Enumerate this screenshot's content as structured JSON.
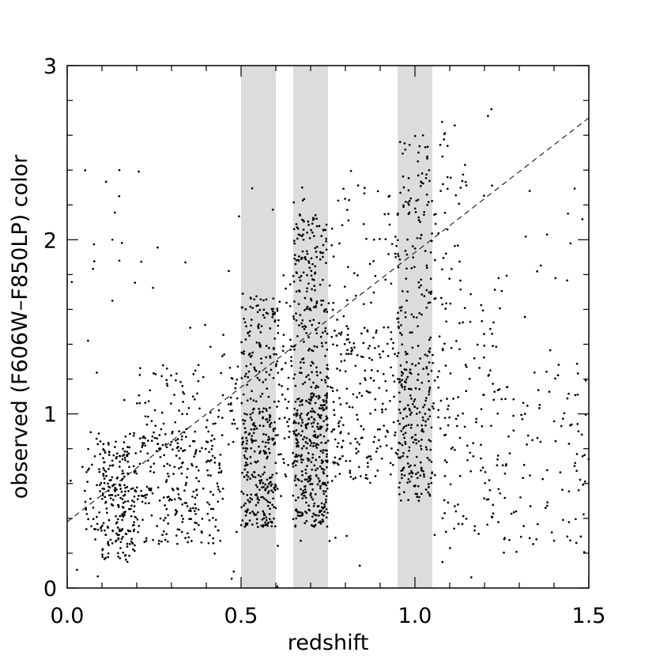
{
  "chart_data": {
    "type": "scatter",
    "xlabel": "redshift",
    "ylabel": "observed (F606W–F850LP) color",
    "xlim": [
      0.0,
      1.5
    ],
    "ylim": [
      0.0,
      3.0
    ],
    "grid": false,
    "x_ticks": [
      0.0,
      0.5,
      1.0,
      1.5
    ],
    "x_tick_labels": [
      "0.0",
      "0.5",
      "1.0",
      "1.5"
    ],
    "y_ticks": [
      0,
      1,
      2,
      3
    ],
    "y_tick_labels": [
      "0",
      "1",
      "2",
      "3"
    ],
    "x_minor_step": 0.1,
    "y_minor_step": 0.2,
    "shaded_bands": [
      {
        "x0": 0.5,
        "x1": 0.6,
        "color": "#dcdcdc"
      },
      {
        "x0": 0.65,
        "x1": 0.75,
        "color": "#dcdcdc"
      },
      {
        "x0": 0.95,
        "x1": 1.05,
        "color": "#dcdcdc"
      }
    ],
    "reference_line": {
      "x0": 0.0,
      "y0": 0.38,
      "x1": 1.5,
      "y1": 2.7,
      "style": "dashed"
    },
    "point_color": "#000000",
    "point_clusters": [
      {
        "x": [
          0.05,
          0.45
        ],
        "y": [
          0.25,
          0.9
        ],
        "n": 360
      },
      {
        "x": [
          0.1,
          0.2
        ],
        "y": [
          0.15,
          0.8
        ],
        "n": 140
      },
      {
        "x": [
          0.2,
          0.5
        ],
        "y": [
          0.8,
          1.3
        ],
        "n": 90
      },
      {
        "x": [
          0.5,
          0.6
        ],
        "y": [
          0.35,
          1.0
        ],
        "n": 230
      },
      {
        "x": [
          0.5,
          0.6
        ],
        "y": [
          1.0,
          1.7
        ],
        "n": 120
      },
      {
        "x": [
          0.6,
          0.65
        ],
        "y": [
          0.4,
          1.8
        ],
        "n": 60
      },
      {
        "x": [
          0.65,
          0.75
        ],
        "y": [
          0.35,
          1.1
        ],
        "n": 320
      },
      {
        "x": [
          0.65,
          0.75
        ],
        "y": [
          1.1,
          2.15
        ],
        "n": 210
      },
      {
        "x": [
          0.75,
          0.95
        ],
        "y": [
          0.6,
          1.5
        ],
        "n": 190
      },
      {
        "x": [
          0.75,
          0.95
        ],
        "y": [
          1.5,
          2.3
        ],
        "n": 40
      },
      {
        "x": [
          0.95,
          1.05
        ],
        "y": [
          0.5,
          1.3
        ],
        "n": 190
      },
      {
        "x": [
          0.95,
          1.05
        ],
        "y": [
          1.3,
          2.6
        ],
        "n": 130
      },
      {
        "x": [
          1.05,
          1.25
        ],
        "y": [
          0.3,
          1.8
        ],
        "n": 140
      },
      {
        "x": [
          1.05,
          1.15
        ],
        "y": [
          1.8,
          2.7
        ],
        "n": 35
      },
      {
        "x": [
          1.25,
          1.5
        ],
        "y": [
          0.2,
          1.3
        ],
        "n": 90
      },
      {
        "x": [
          0.0,
          1.5
        ],
        "y": [
          0.0,
          2.4
        ],
        "n": 120
      }
    ],
    "outlier_points": [
      [
        0.13,
        2.0
      ],
      [
        0.15,
        2.4
      ],
      [
        0.15,
        1.88
      ],
      [
        0.34,
        1.87
      ],
      [
        0.06,
        1.42
      ],
      [
        0.13,
        1.65
      ],
      [
        1.22,
        2.75
      ],
      [
        1.21,
        2.71
      ],
      [
        1.33,
        2.28
      ],
      [
        1.44,
        2.15
      ],
      [
        1.38,
        2.03
      ],
      [
        1.47,
        0.9
      ]
    ]
  }
}
